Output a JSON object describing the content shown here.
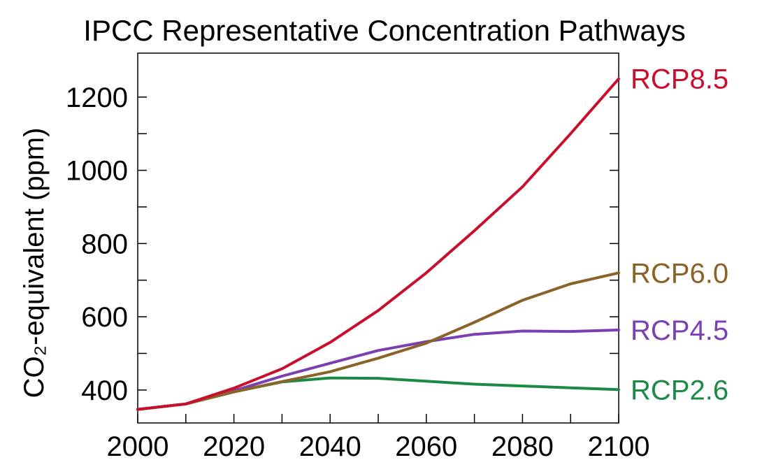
{
  "chart_data": {
    "type": "line",
    "title": "IPCC Representative Concentration Pathways",
    "xlabel": "",
    "ylabel": "CO₂-equivalent (ppm)",
    "xlim": [
      2000,
      2100
    ],
    "ylim": [
      310,
      1320
    ],
    "x_ticks": [
      2000,
      2020,
      2040,
      2060,
      2080,
      2100
    ],
    "x_minor_ticks": [
      2010,
      2030,
      2050,
      2070,
      2090
    ],
    "y_ticks": [
      400,
      600,
      800,
      1000,
      1200
    ],
    "y_minor_ticks": [
      500,
      700,
      900,
      1100
    ],
    "grid": false,
    "legend": "labels at right end of each line",
    "x": [
      2000,
      2010,
      2020,
      2030,
      2040,
      2050,
      2060,
      2070,
      2080,
      2090,
      2100
    ],
    "series": [
      {
        "name": "RCP8.5",
        "color": "#c8102e",
        "values": [
          347,
          362,
          405,
          458,
          530,
          617,
          720,
          835,
          955,
          1100,
          1250
        ]
      },
      {
        "name": "RCP6.0",
        "color": "#8b6329",
        "values": [
          347,
          362,
          395,
          423,
          450,
          487,
          528,
          585,
          645,
          690,
          720
        ]
      },
      {
        "name": "RCP4.5",
        "color": "#7a3fb0",
        "values": [
          347,
          362,
          398,
          438,
          473,
          508,
          532,
          552,
          561,
          560,
          564
        ]
      },
      {
        "name": "RCP2.6",
        "color": "#1a8a45",
        "values": [
          347,
          362,
          395,
          422,
          433,
          432,
          424,
          416,
          411,
          406,
          401
        ]
      }
    ]
  }
}
